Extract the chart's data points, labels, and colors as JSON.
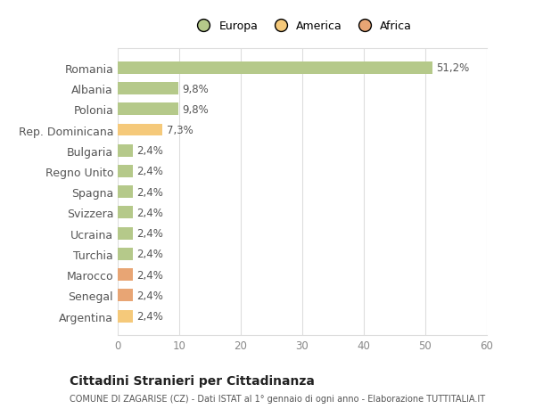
{
  "categories": [
    "Romania",
    "Albania",
    "Polonia",
    "Rep. Dominicana",
    "Bulgaria",
    "Regno Unito",
    "Spagna",
    "Svizzera",
    "Ucraina",
    "Turchia",
    "Marocco",
    "Senegal",
    "Argentina"
  ],
  "values": [
    51.2,
    9.8,
    9.8,
    7.3,
    2.4,
    2.4,
    2.4,
    2.4,
    2.4,
    2.4,
    2.4,
    2.4,
    2.4
  ],
  "labels": [
    "51,2%",
    "9,8%",
    "9,8%",
    "7,3%",
    "2,4%",
    "2,4%",
    "2,4%",
    "2,4%",
    "2,4%",
    "2,4%",
    "2,4%",
    "2,4%",
    "2,4%"
  ],
  "colors": [
    "#b5c98a",
    "#b5c98a",
    "#b5c98a",
    "#f5c97a",
    "#b5c98a",
    "#b5c98a",
    "#b5c98a",
    "#b5c98a",
    "#b5c98a",
    "#b5c98a",
    "#e8a574",
    "#e8a574",
    "#f5c97a"
  ],
  "legend": [
    {
      "label": "Europa",
      "color": "#b5c98a"
    },
    {
      "label": "America",
      "color": "#f5c97a"
    },
    {
      "label": "Africa",
      "color": "#e8a574"
    }
  ],
  "xlim": [
    0,
    60
  ],
  "xticks": [
    0,
    10,
    20,
    30,
    40,
    50,
    60
  ],
  "title": "Cittadini Stranieri per Cittadinanza",
  "subtitle": "COMUNE DI ZAGARISE (CZ) - Dati ISTAT al 1° gennaio di ogni anno - Elaborazione TUTTITALIA.IT",
  "background_color": "#ffffff",
  "plot_bg_color": "#f9f9f9",
  "grid_color": "#dddddd",
  "bar_height": 0.6,
  "label_color": "#555555",
  "tick_color": "#888888"
}
